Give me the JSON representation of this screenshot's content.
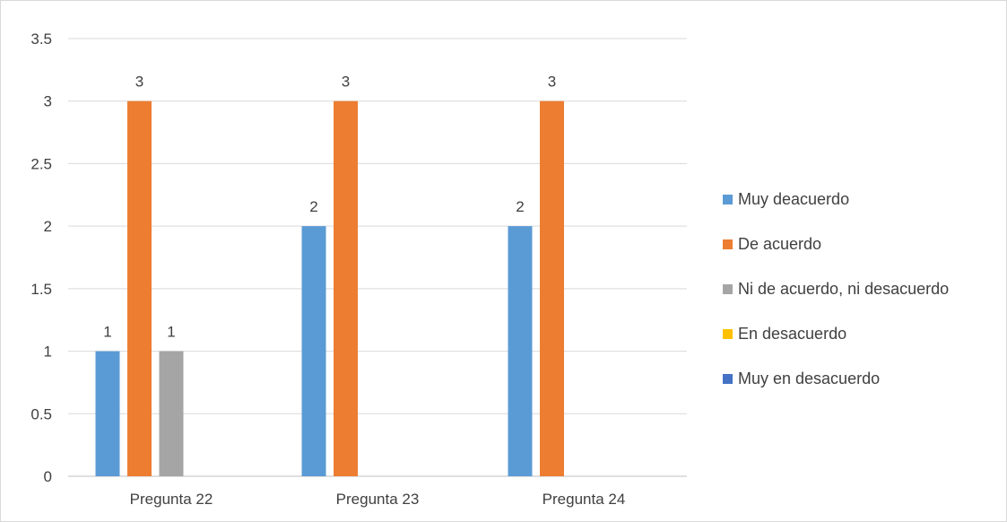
{
  "chart_data": {
    "type": "bar",
    "categories": [
      "Pregunta 22",
      "Pregunta 23",
      "Pregunta 24"
    ],
    "series": [
      {
        "name": "Muy deacuerdo",
        "values": [
          1,
          2,
          2
        ],
        "color": "#5b9bd5"
      },
      {
        "name": "De acuerdo",
        "values": [
          3,
          3,
          3
        ],
        "color": "#ed7d31"
      },
      {
        "name": "Ni de acuerdo, ni desacuerdo",
        "values": [
          1,
          null,
          null
        ],
        "color": "#a5a5a5"
      },
      {
        "name": "En desacuerdo",
        "values": [
          null,
          null,
          null
        ],
        "color": "#ffc000"
      },
      {
        "name": "Muy en desacuerdo",
        "values": [
          null,
          null,
          null
        ],
        "color": "#4472c4"
      }
    ],
    "ylim": [
      0,
      3.5
    ],
    "yticks": [
      "0",
      "0.5",
      "1",
      "1.5",
      "2",
      "2.5",
      "3",
      "3.5"
    ],
    "ytick_values": [
      0,
      0.5,
      1,
      1.5,
      2,
      2.5,
      3,
      3.5
    ],
    "grid": true,
    "legend_position": "right",
    "data_labels": true
  }
}
